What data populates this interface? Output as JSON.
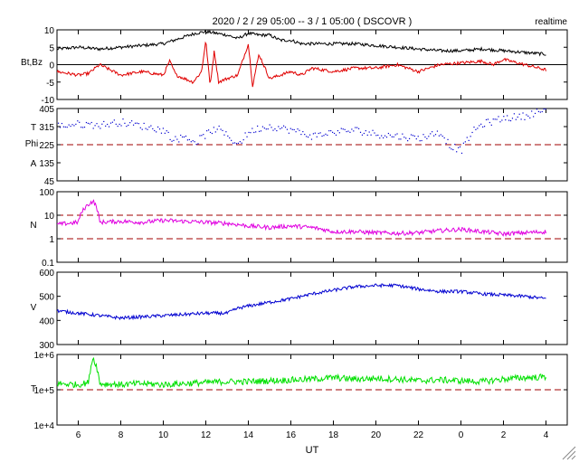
{
  "header": {
    "title": "2020 / 2 / 29  05:00 --  3 / 1  05:00 ( DSCOVR )",
    "mode": "realtime"
  },
  "xaxis": {
    "label": "UT",
    "ticks": [
      {
        "hours": 1,
        "label": "6"
      },
      {
        "hours": 3,
        "label": "8"
      },
      {
        "hours": 5,
        "label": "10"
      },
      {
        "hours": 7,
        "label": "12"
      },
      {
        "hours": 9,
        "label": "14"
      },
      {
        "hours": 11,
        "label": "16"
      },
      {
        "hours": 13,
        "label": "18"
      },
      {
        "hours": 15,
        "label": "20"
      },
      {
        "hours": 17,
        "label": "22"
      },
      {
        "hours": 19,
        "label": "0"
      },
      {
        "hours": 21,
        "label": "2"
      },
      {
        "hours": 23,
        "label": "4"
      }
    ]
  },
  "chart_data": [
    {
      "type": "line",
      "ylabel": [
        "Bt,Bz"
      ],
      "ylim": [
        -10,
        10
      ],
      "yticks": [
        10,
        5,
        0,
        -5,
        -10
      ],
      "ytick_labels": [
        "10",
        "5",
        "0",
        "-5",
        "-10"
      ],
      "reference_lines": [
        {
          "value": 0,
          "style": "solid",
          "color": "#000000"
        }
      ],
      "series": [
        {
          "name": "Bt",
          "color": "#000000",
          "x": [
            0,
            1,
            2,
            3,
            4,
            5,
            5.5,
            6,
            6.5,
            7,
            7.5,
            8,
            8.5,
            9,
            9.5,
            10,
            10.5,
            11,
            11.5,
            12,
            13,
            14,
            15,
            16,
            17,
            18,
            19,
            20,
            21,
            22,
            23
          ],
          "values": [
            4.5,
            5,
            4.5,
            5,
            5.5,
            6,
            7,
            8,
            9,
            9.5,
            9,
            8.5,
            7.5,
            9,
            8.5,
            8.5,
            7,
            7,
            6,
            6,
            6,
            6,
            5.5,
            5,
            4.5,
            4,
            4,
            4.5,
            4,
            3.5,
            3
          ]
        },
        {
          "name": "Bz",
          "color": "#e00000",
          "x": [
            0,
            1,
            1.5,
            2,
            3,
            4,
            5,
            5.3,
            5.6,
            6,
            6.4,
            6.8,
            7,
            7.2,
            7.4,
            7.6,
            8,
            8.5,
            9,
            9.2,
            9.5,
            10,
            10.5,
            11,
            11.5,
            12,
            13,
            14,
            15,
            16,
            17,
            18,
            19,
            20,
            20.5,
            21,
            22,
            23
          ],
          "values": [
            -2,
            -3,
            -2.5,
            0,
            -3,
            -2,
            -3,
            1,
            -3,
            -4,
            -5,
            -2,
            7,
            -6,
            4,
            -5,
            -4,
            -3,
            6,
            -6,
            3,
            -4,
            -3,
            -2,
            -3,
            -1,
            -2,
            -1,
            -1,
            0,
            -2,
            0,
            0.5,
            1,
            0,
            1.5,
            0,
            -1.5
          ]
        }
      ]
    },
    {
      "type": "scatter",
      "ylabel": [
        "T",
        "Phi",
        "A"
      ],
      "ylim": [
        45,
        405
      ],
      "yticks": [
        405,
        315,
        225,
        135,
        45
      ],
      "ytick_labels": [
        "405",
        "315",
        "225",
        "135",
        "45"
      ],
      "reference_lines": [
        {
          "value": 225,
          "style": "dashed",
          "color": "#a00000"
        }
      ],
      "series": [
        {
          "name": "Phi",
          "color": "#0000d0",
          "x": [
            0,
            1,
            2,
            3,
            4,
            5,
            5.5,
            6,
            6.5,
            7,
            7.5,
            8,
            8.5,
            9,
            9.5,
            10,
            11,
            12,
            13,
            14,
            15,
            16,
            17,
            18,
            18.5,
            19,
            19.5,
            20,
            21,
            22,
            22.5,
            23
          ],
          "values": [
            320,
            330,
            325,
            340,
            320,
            300,
            250,
            270,
            240,
            280,
            310,
            270,
            230,
            290,
            310,
            320,
            300,
            270,
            290,
            300,
            280,
            270,
            260,
            290,
            220,
            200,
            290,
            330,
            360,
            370,
            390,
            400
          ]
        }
      ]
    },
    {
      "type": "line",
      "ylabel": [
        "N"
      ],
      "yscale": "log",
      "ylim": [
        0.1,
        100
      ],
      "yticks": [
        100,
        10,
        1,
        0.1
      ],
      "ytick_labels": [
        "100",
        "10",
        "1",
        "0.1"
      ],
      "reference_lines": [
        {
          "value": 10,
          "style": "dashed",
          "color": "#a00000"
        },
        {
          "value": 1,
          "style": "dashed",
          "color": "#a00000"
        }
      ],
      "series": [
        {
          "name": "N",
          "color": "#e000e0",
          "x": [
            0,
            1,
            1.7,
            2,
            3,
            4,
            5,
            6,
            7,
            8,
            9,
            10,
            11,
            12,
            13,
            14,
            15,
            16,
            17,
            18,
            19,
            20,
            21,
            22,
            23
          ],
          "values": [
            4,
            5,
            40,
            5,
            5.5,
            5,
            6,
            5.5,
            5,
            4.5,
            3.5,
            3,
            3.5,
            3,
            2,
            2,
            1.8,
            1.7,
            1.8,
            2.2,
            2.5,
            2,
            1.6,
            1.8,
            2
          ]
        }
      ]
    },
    {
      "type": "line",
      "ylabel": [
        "V"
      ],
      "ylim": [
        300,
        600
      ],
      "yticks": [
        600,
        500,
        400,
        300
      ],
      "ytick_labels": [
        "600",
        "500",
        "400",
        "300"
      ],
      "series": [
        {
          "name": "V",
          "color": "#0000d0",
          "x": [
            0,
            1,
            2,
            3,
            4,
            5,
            6,
            7,
            8,
            8.5,
            9,
            10,
            11,
            12,
            13,
            14,
            15,
            16,
            17,
            18,
            19,
            20,
            21,
            22,
            23
          ],
          "values": [
            440,
            430,
            420,
            410,
            415,
            420,
            425,
            430,
            430,
            450,
            460,
            475,
            490,
            510,
            525,
            540,
            545,
            545,
            530,
            520,
            520,
            510,
            505,
            500,
            490
          ]
        }
      ]
    },
    {
      "type": "line",
      "ylabel": [
        "T"
      ],
      "yscale": "log",
      "ylim": [
        10000,
        1000000
      ],
      "yticks": [
        1000000,
        100000,
        10000
      ],
      "ytick_labels": [
        "1e+6",
        "1e+5",
        "1e+4"
      ],
      "reference_lines": [
        {
          "value": 100000,
          "style": "dashed",
          "color": "#a00000"
        }
      ],
      "series": [
        {
          "name": "T",
          "color": "#00e000",
          "x": [
            0,
            1,
            1.5,
            1.7,
            2,
            3,
            4,
            5,
            6,
            7,
            8,
            9,
            10,
            11,
            12,
            13,
            14,
            15,
            16,
            17,
            18,
            19,
            20,
            21,
            22,
            23
          ],
          "values": [
            150000,
            140000,
            160000,
            800000,
            150000,
            140000,
            150000,
            140000,
            150000,
            160000,
            170000,
            170000,
            180000,
            190000,
            200000,
            220000,
            200000,
            210000,
            200000,
            180000,
            190000,
            180000,
            170000,
            200000,
            220000,
            230000
          ]
        }
      ]
    }
  ]
}
